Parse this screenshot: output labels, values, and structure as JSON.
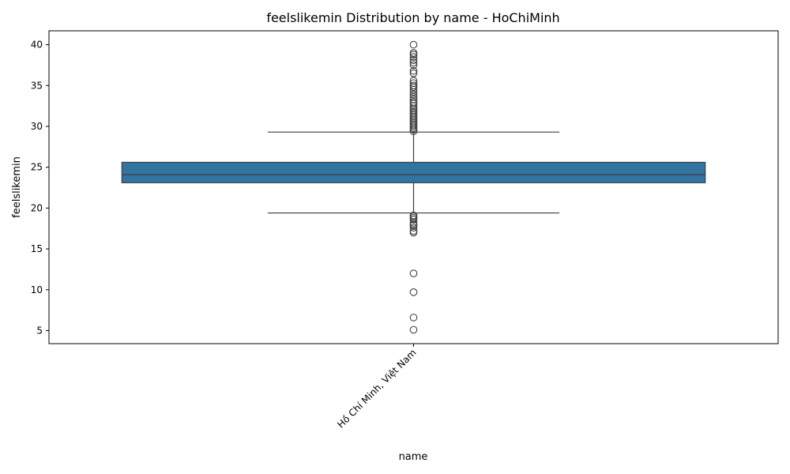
{
  "chart_data": {
    "type": "box",
    "title": "feelslikemin Distribution by name - HoChiMinh",
    "xlabel": "name",
    "ylabel": "feelslikemin",
    "categories": [
      "Hồ Chí Minh, Việt Nam"
    ],
    "ylim": [
      3.4,
      41.7
    ],
    "yticks": [
      5,
      10,
      15,
      20,
      25,
      30,
      35,
      40
    ],
    "grid": false,
    "color": "#3274a1",
    "boxes": [
      {
        "category": "Hồ Chí Minh, Việt Nam",
        "q1": 23.1,
        "median": 24.1,
        "q3": 25.6,
        "whisker_low": 19.4,
        "whisker_high": 29.3,
        "outliers": [
          5.1,
          6.6,
          9.7,
          12.0,
          17.0,
          17.2,
          17.6,
          17.9,
          18.0,
          18.2,
          18.6,
          18.8,
          19.0,
          19.1,
          29.4,
          29.6,
          29.8,
          30.0,
          30.2,
          30.4,
          30.6,
          30.8,
          31.0,
          31.2,
          31.4,
          31.6,
          31.8,
          32.0,
          32.2,
          32.5,
          32.8,
          33.0,
          33.3,
          33.6,
          33.9,
          34.2,
          34.5,
          34.8,
          35.0,
          35.3,
          35.6,
          36.5,
          36.8,
          37.5,
          37.8,
          38.1,
          38.5,
          38.8,
          39.0,
          40.0
        ]
      }
    ]
  }
}
